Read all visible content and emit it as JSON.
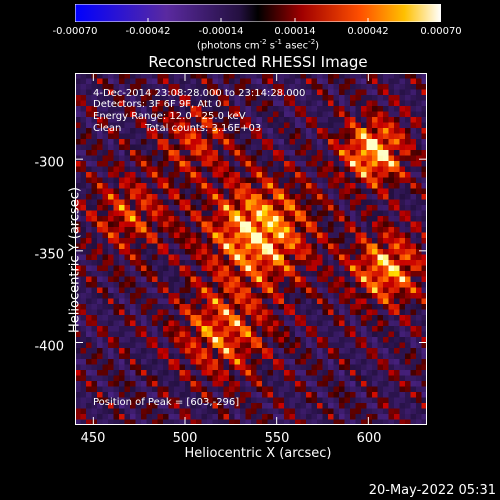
{
  "colorbar": {
    "ticks": [
      "-0.00070",
      "-0.00042",
      "-0.00014",
      "0.00014",
      "0.00042",
      "0.00070"
    ],
    "units_prefix": "(photons cm",
    "units_sup1": "-2",
    "units_mid1": " s",
    "units_sup2": "-1",
    "units_mid2": " asec",
    "units_sup3": "-2",
    "units_suffix": ")",
    "range": [
      -0.0007,
      0.0007
    ]
  },
  "chart_data": {
    "type": "heatmap",
    "title": "Reconstructed RHESSI Image",
    "xlabel": "Heliocentric X (arcsec)",
    "ylabel": "Heliocentric Y (arcsec)",
    "xlim": [
      440,
      632
    ],
    "ylim": [
      -445,
      -253
    ],
    "xticks": [
      450,
      500,
      550,
      600
    ],
    "yticks": [
      -300,
      -350,
      -400
    ],
    "peak": [
      603,
      -296
    ],
    "annotations": {
      "time_range": "4-Dec-2014 23:08:28.000 to 23:14:28.000",
      "detectors": "Detectors: 3F 6F 9F, Att 0",
      "energy": "Energy Range: 12.0 - 25.0 keV",
      "method": "Clean",
      "counts": "Total counts: 3.16E+03",
      "peak_text": "Position of Peak = [603,-296]"
    }
  },
  "timestamp": "20-May-2022 05:31"
}
